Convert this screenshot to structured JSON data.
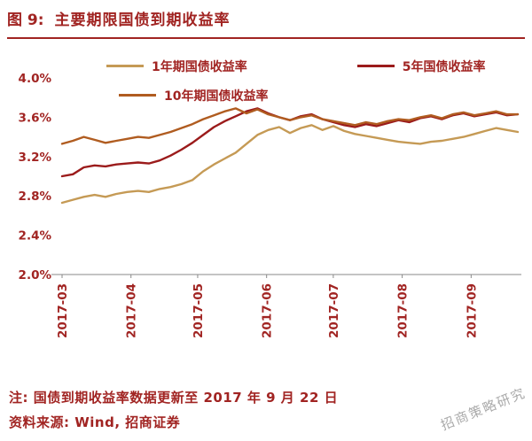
{
  "header": {
    "title_prefix": "图 9:",
    "title": "主要期限国债到期收益率"
  },
  "colors": {
    "brand_red": "#a12422",
    "s1": "#c59a55",
    "s5": "#9b1b1b",
    "s10": "#b05c20",
    "axis": "#8a8a8a",
    "watermark_gray": "#7d7d7d"
  },
  "chart_data": {
    "type": "line",
    "title": "主要期限国债到期收益率",
    "xlabel": "",
    "ylabel": "",
    "ylim": [
      2.0,
      4.0
    ],
    "yticks": [
      4.0,
      3.6,
      3.2,
      2.8,
      2.4,
      2.0
    ],
    "ytick_format": "percent_one_decimal",
    "grid": false,
    "legend_position": "top",
    "x_domain_days": [
      0,
      205
    ],
    "month_ticks": [
      {
        "label": "2017-03",
        "day": 0
      },
      {
        "label": "2017-04",
        "day": 31
      },
      {
        "label": "2017-05",
        "day": 61
      },
      {
        "label": "2017-06",
        "day": 92
      },
      {
        "label": "2017-07",
        "day": 122
      },
      {
        "label": "2017-08",
        "day": 153
      },
      {
        "label": "2017-09",
        "day": 184
      }
    ],
    "series": [
      {
        "name": "1年期国债收益率",
        "color_key": "s1",
        "values": [
          2.73,
          2.76,
          2.79,
          2.81,
          2.79,
          2.82,
          2.84,
          2.85,
          2.84,
          2.87,
          2.89,
          2.92,
          2.96,
          3.05,
          3.12,
          3.18,
          3.24,
          3.33,
          3.42,
          3.47,
          3.5,
          3.44,
          3.49,
          3.52,
          3.47,
          3.51,
          3.46,
          3.43,
          3.41,
          3.39,
          3.37,
          3.35,
          3.34,
          3.33,
          3.35,
          3.36,
          3.38,
          3.4,
          3.43,
          3.46,
          3.49,
          3.47,
          3.45
        ]
      },
      {
        "name": "5年国债收益率",
        "color_key": "s5",
        "values": [
          3.0,
          3.02,
          3.09,
          3.11,
          3.1,
          3.12,
          3.13,
          3.14,
          3.13,
          3.16,
          3.21,
          3.27,
          3.34,
          3.42,
          3.5,
          3.56,
          3.61,
          3.66,
          3.69,
          3.64,
          3.6,
          3.57,
          3.61,
          3.63,
          3.58,
          3.55,
          3.52,
          3.5,
          3.53,
          3.51,
          3.54,
          3.57,
          3.55,
          3.59,
          3.61,
          3.58,
          3.62,
          3.64,
          3.61,
          3.63,
          3.65,
          3.62,
          3.63
        ]
      },
      {
        "name": "10年期国债收益率",
        "color_key": "s10",
        "values": [
          3.33,
          3.36,
          3.4,
          3.37,
          3.34,
          3.36,
          3.38,
          3.4,
          3.39,
          3.42,
          3.45,
          3.49,
          3.53,
          3.58,
          3.62,
          3.66,
          3.69,
          3.64,
          3.68,
          3.63,
          3.6,
          3.57,
          3.6,
          3.62,
          3.58,
          3.56,
          3.54,
          3.52,
          3.55,
          3.53,
          3.56,
          3.58,
          3.57,
          3.6,
          3.62,
          3.59,
          3.63,
          3.65,
          3.62,
          3.64,
          3.66,
          3.63,
          3.63
        ]
      }
    ]
  },
  "notes": {
    "note": "注: 国债到期收益率数据更新至 2017 年 9 月 22 日",
    "source": "资料来源: Wind, 招商证券"
  },
  "watermark": "招商策略研究"
}
